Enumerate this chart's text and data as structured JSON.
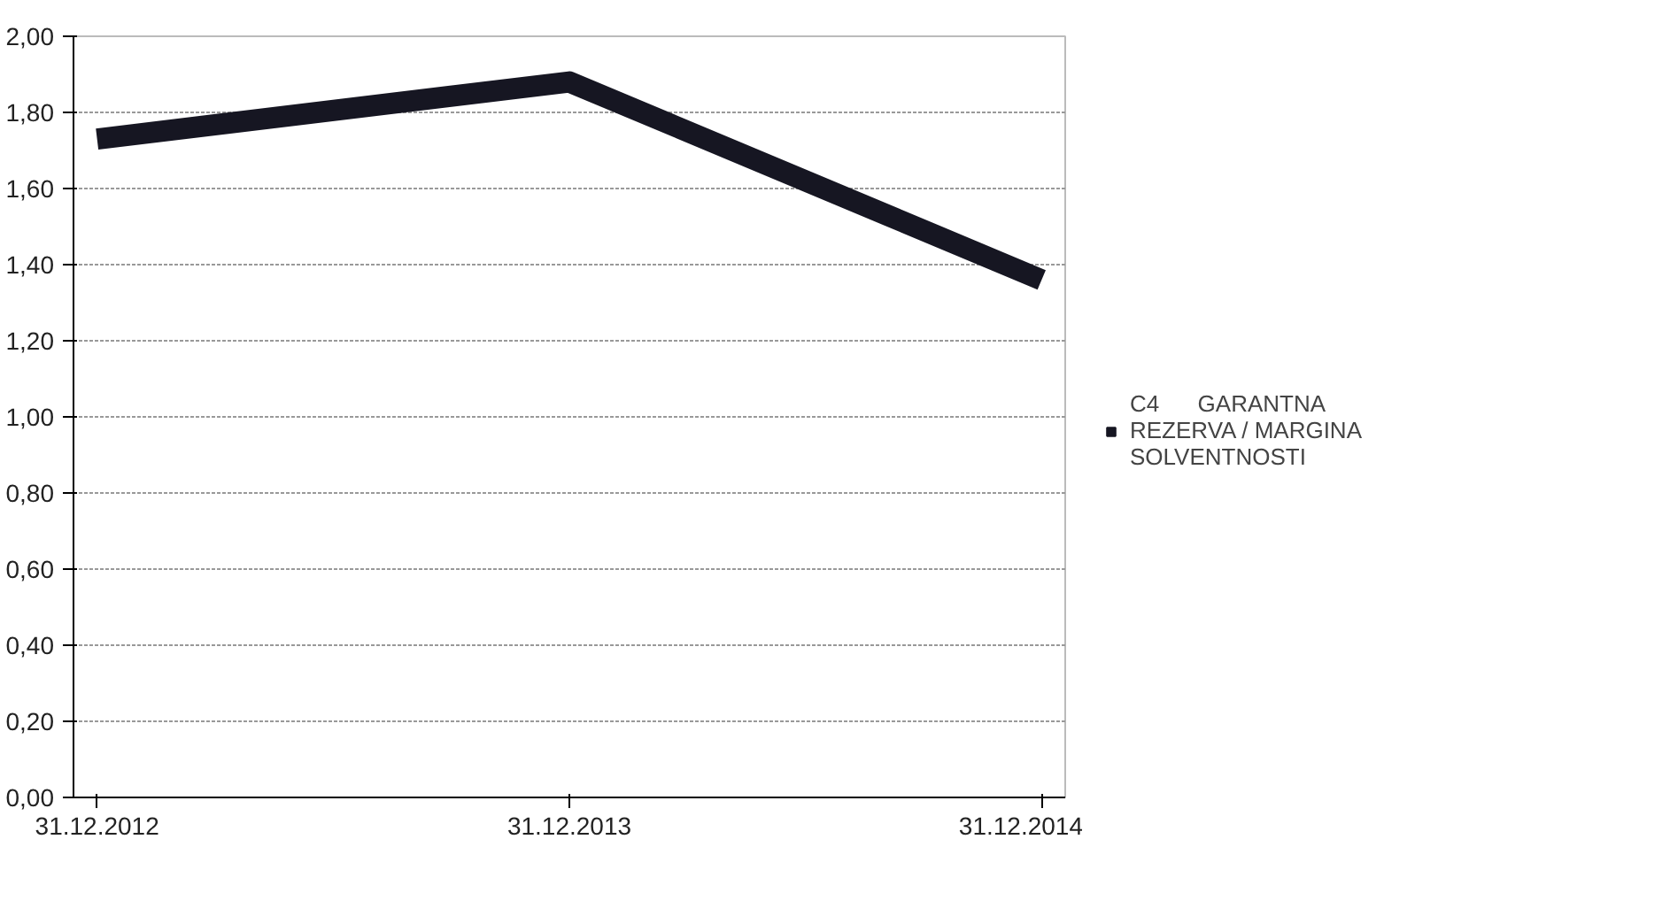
{
  "chart_data": {
    "type": "line",
    "categories": [
      "31.12.2012",
      "31.12.2013",
      "31.12.2014"
    ],
    "series": [
      {
        "name": "C4      GARANTNA REZERVA / MARGINA SOLVENTNOSTI",
        "color": "#161622",
        "values": [
          1.73,
          1.88,
          1.36
        ]
      }
    ],
    "ylim": [
      0,
      2
    ],
    "yticks": [
      {
        "value": 0,
        "label": "0,00"
      },
      {
        "value": 0.2,
        "label": "0,20"
      },
      {
        "value": 0.4,
        "label": "0,40"
      },
      {
        "value": 0.6,
        "label": "0,60"
      },
      {
        "value": 0.8,
        "label": "0,80"
      },
      {
        "value": 1.0,
        "label": "1,00"
      },
      {
        "value": 1.2,
        "label": "1,20"
      },
      {
        "value": 1.4,
        "label": "1,40"
      },
      {
        "value": 1.6,
        "label": "1,60"
      },
      {
        "value": 1.8,
        "label": "1,80"
      },
      {
        "value": 2.0,
        "label": "2,00"
      }
    ],
    "grid": "y",
    "legend": "right",
    "marker": "none",
    "line_style": "solid"
  }
}
